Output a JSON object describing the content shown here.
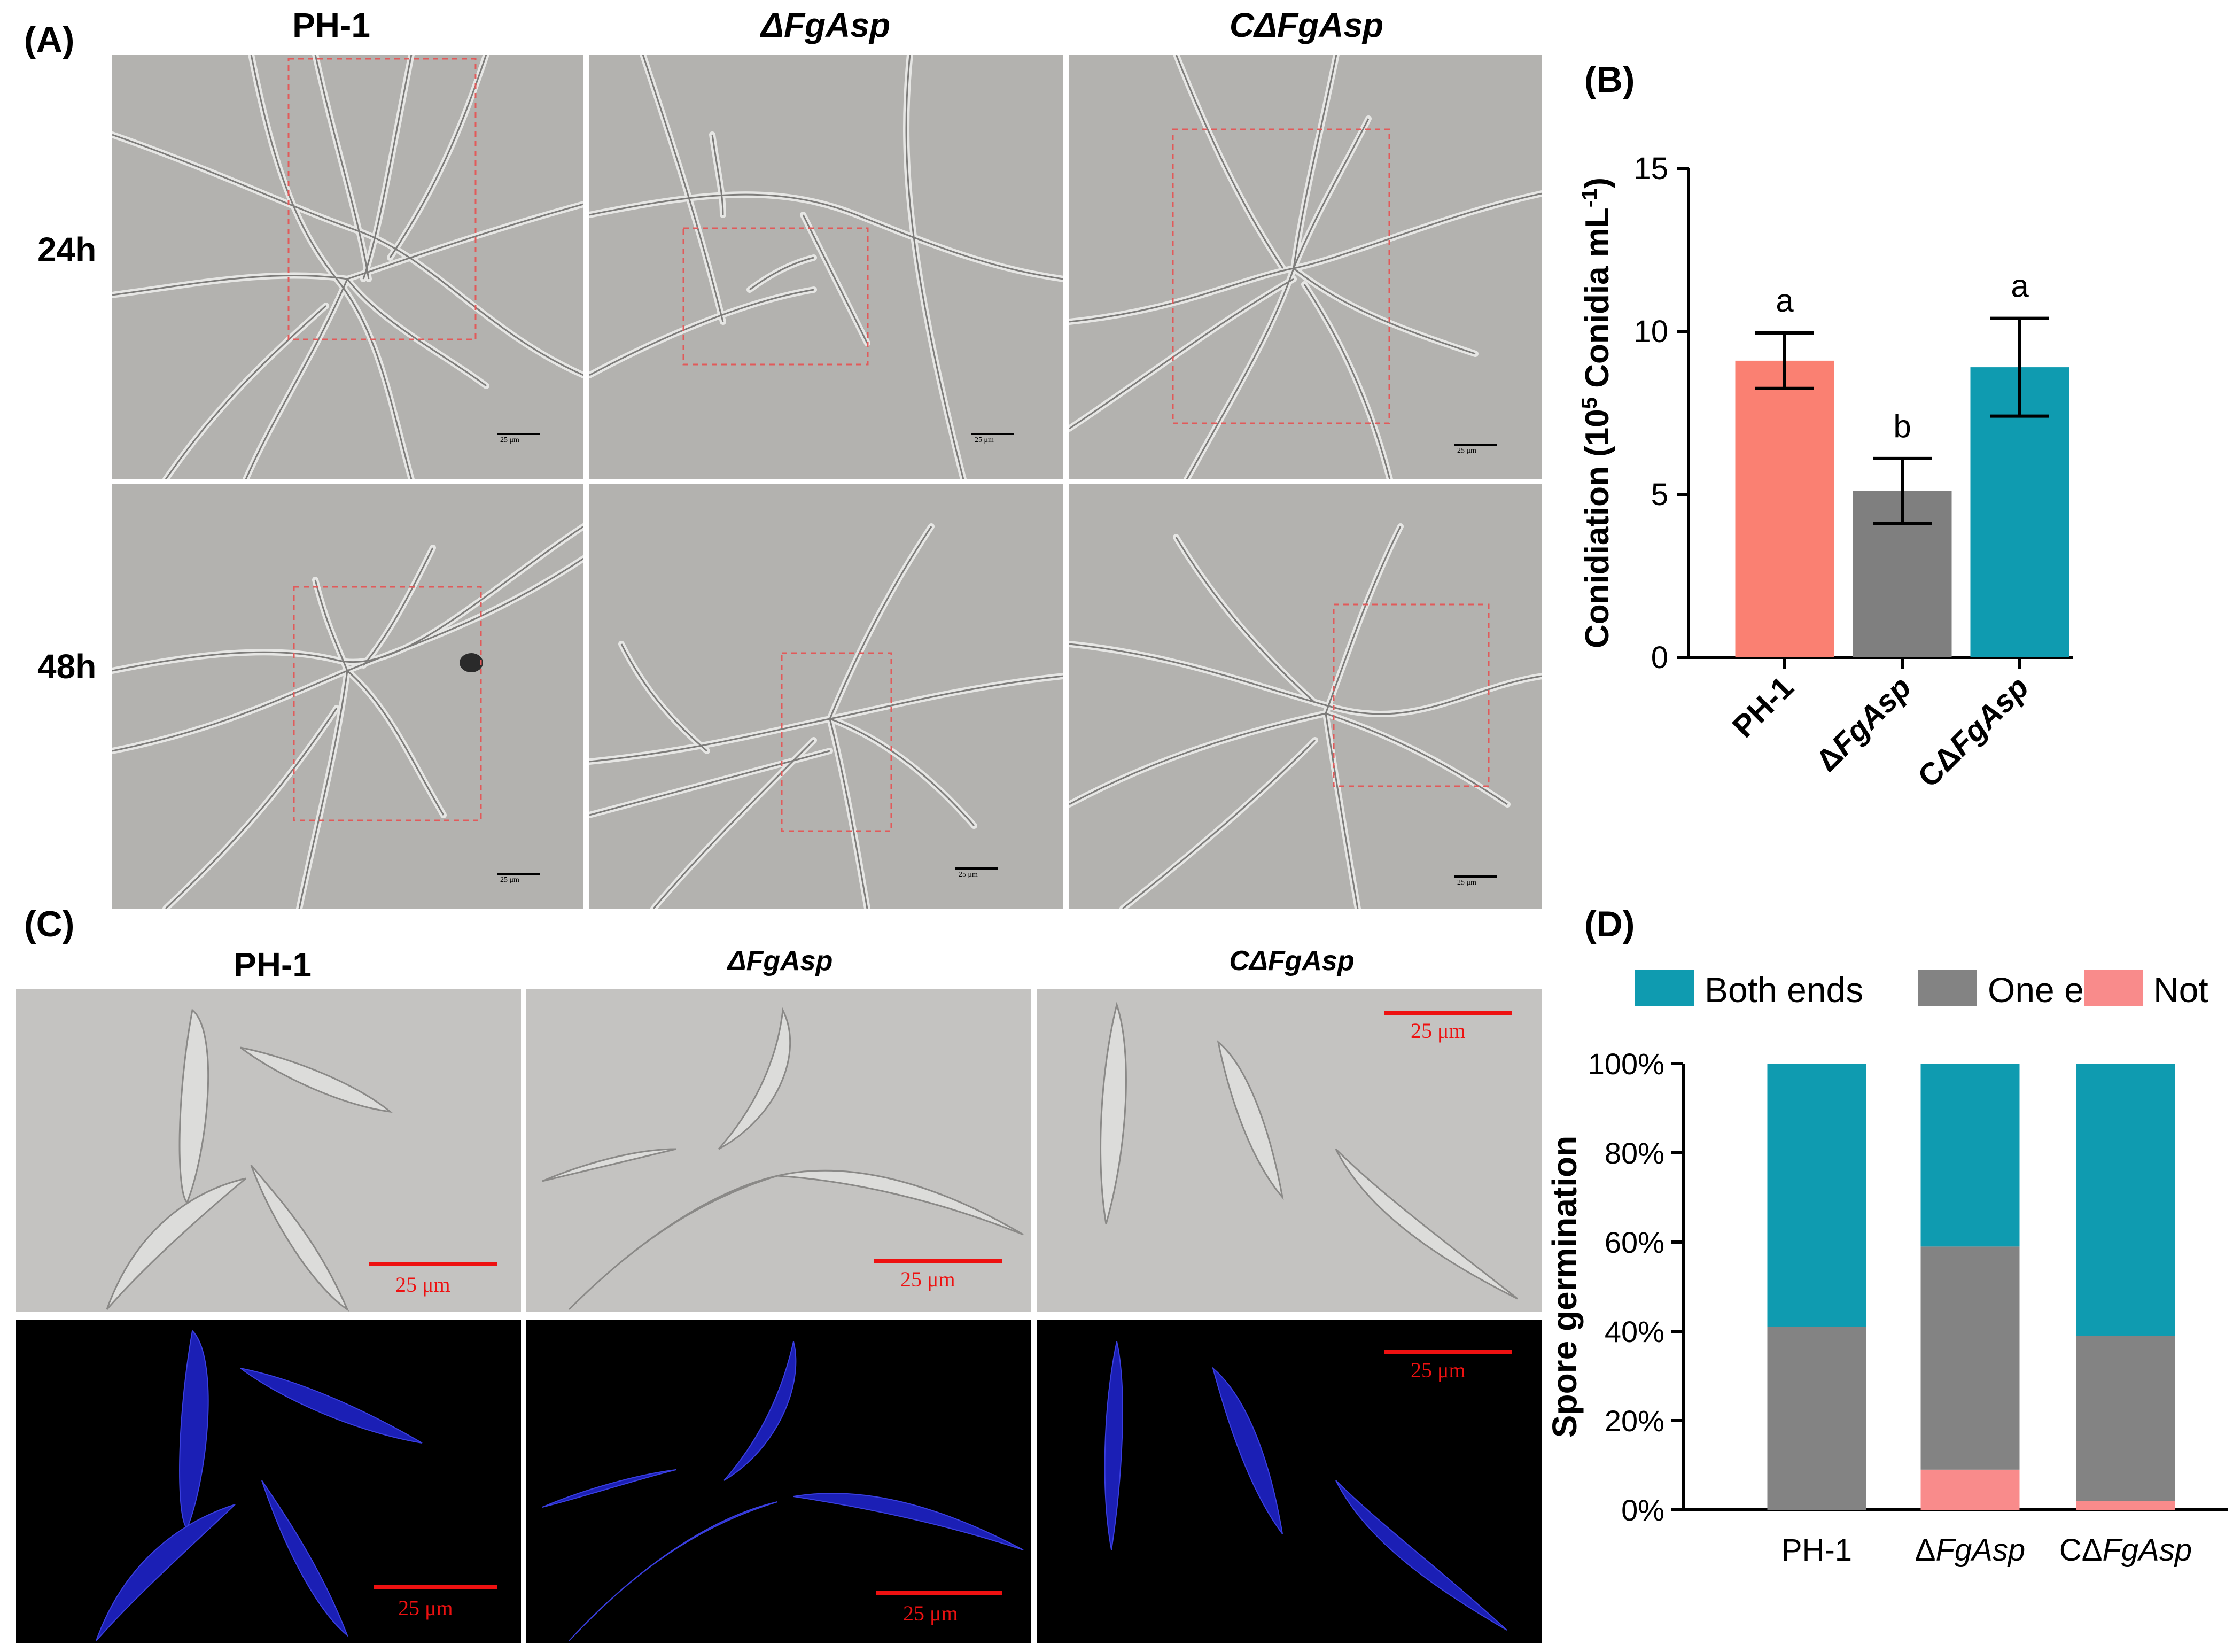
{
  "panel_a": {
    "label": "(A)",
    "columns": [
      "PH-1",
      "ΔFgAsp",
      "CΔFgAsp"
    ],
    "rows": [
      "24h",
      "48h"
    ],
    "scale_bar": "25 μm"
  },
  "panel_b": {
    "label": "(B)",
    "sig_letters": [
      "a",
      "b",
      "a"
    ]
  },
  "panel_c": {
    "label": "(C)",
    "columns": [
      "PH-1",
      "ΔFgAsp",
      "CΔFgAsp"
    ],
    "scale_bar": "25 μm"
  },
  "panel_d": {
    "label": "(D)"
  },
  "chart_data": [
    {
      "type": "bar",
      "categories": [
        "PH-1",
        "ΔFgAsp",
        "CΔFgAsp"
      ],
      "values": [
        9.1,
        5.1,
        8.9
      ],
      "errors": [
        0.85,
        1.0,
        1.5
      ],
      "ylabel": "Conidiation (10^5 Conidia mL^-1)",
      "ylim": [
        0,
        15
      ],
      "yticks": [
        "0",
        "5",
        "10",
        "15"
      ],
      "colors": [
        "#fa8072",
        "#7f7f7f",
        "#0f9bb0"
      ]
    },
    {
      "type": "bar",
      "stacked": true,
      "categories": [
        "PH-1",
        "ΔFgAsp",
        "CΔFgAsp"
      ],
      "series": [
        {
          "name": "Not",
          "values": [
            0,
            9,
            2
          ],
          "color": "#f98b8b"
        },
        {
          "name": "One end",
          "values": [
            41,
            50,
            37
          ],
          "color": "#838383"
        },
        {
          "name": "Both ends",
          "values": [
            59,
            41,
            61
          ],
          "color": "#0f9bb0"
        }
      ],
      "ylabel": "Spore germination",
      "ylim": [
        0,
        100
      ],
      "yticks": [
        "0%",
        "20%",
        "40%",
        "60%",
        "80%",
        "100%"
      ],
      "legend_order": [
        "Both ends",
        "One end",
        "Not"
      ],
      "legend_position": "top"
    }
  ]
}
